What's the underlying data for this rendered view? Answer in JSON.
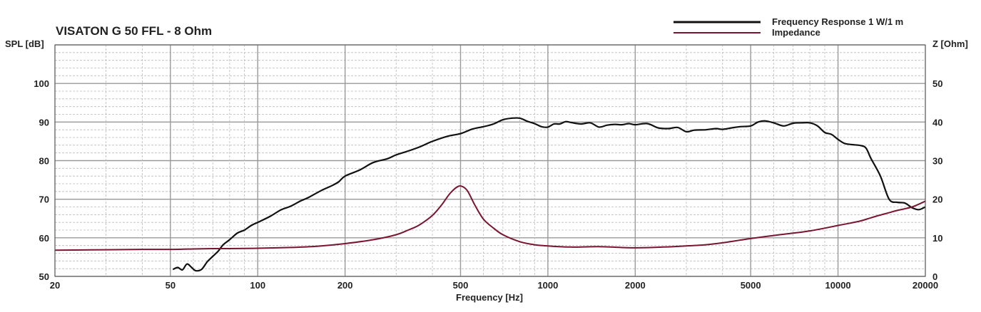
{
  "chart_data": {
    "type": "line",
    "title": "VISATON G 50 FFL - 8 Ohm",
    "xlabel": "Frequency [Hz]",
    "ylabel_left": "SPL [dB]",
    "ylabel_right": "Z [Ohm]",
    "x_scale": "log",
    "xlim": [
      20,
      20000
    ],
    "ylim_left": [
      50,
      110
    ],
    "ylim_right": [
      0,
      60
    ],
    "grid": true,
    "legend_position": "top-right",
    "x_ticks": [
      {
        "value": 20,
        "label": "20"
      },
      {
        "value": 50,
        "label": "50"
      },
      {
        "value": 100,
        "label": "100"
      },
      {
        "value": 200,
        "label": "200"
      },
      {
        "value": 500,
        "label": "500"
      },
      {
        "value": 1000,
        "label": "1000"
      },
      {
        "value": 2000,
        "label": "2000"
      },
      {
        "value": 5000,
        "label": "5000"
      },
      {
        "value": 10000,
        "label": "10000"
      },
      {
        "value": 20000,
        "label": "20000"
      }
    ],
    "y_ticks_left": [
      {
        "value": 50,
        "label": "50"
      },
      {
        "value": 60,
        "label": "60"
      },
      {
        "value": 70,
        "label": "70"
      },
      {
        "value": 80,
        "label": "80"
      },
      {
        "value": 90,
        "label": "90"
      },
      {
        "value": 100,
        "label": "100"
      }
    ],
    "y_ticks_right": [
      {
        "value": 0,
        "label": "0"
      },
      {
        "value": 10,
        "label": "10"
      },
      {
        "value": 20,
        "label": "20"
      },
      {
        "value": 30,
        "label": "30"
      },
      {
        "value": 40,
        "label": "40"
      },
      {
        "value": 50,
        "label": "50"
      }
    ],
    "series": [
      {
        "name": "Frequency Response 1 W/1 m",
        "axis": "left",
        "color": "#111111",
        "points": [
          [
            51,
            51.8
          ],
          [
            53,
            52.3
          ],
          [
            55,
            51.7
          ],
          [
            57,
            53.2
          ],
          [
            59,
            52.4
          ],
          [
            61,
            51.5
          ],
          [
            64,
            51.8
          ],
          [
            67,
            53.8
          ],
          [
            70,
            55.2
          ],
          [
            73,
            56.5
          ],
          [
            76,
            58.2
          ],
          [
            80,
            59.5
          ],
          [
            85,
            61.2
          ],
          [
            90,
            62.0
          ],
          [
            95,
            63.2
          ],
          [
            100,
            64.0
          ],
          [
            110,
            65.5
          ],
          [
            120,
            67.2
          ],
          [
            130,
            68.2
          ],
          [
            140,
            69.5
          ],
          [
            150,
            70.5
          ],
          [
            165,
            72.2
          ],
          [
            180,
            73.5
          ],
          [
            190,
            74.5
          ],
          [
            200,
            76.0
          ],
          [
            225,
            77.6
          ],
          [
            250,
            79.5
          ],
          [
            280,
            80.5
          ],
          [
            300,
            81.5
          ],
          [
            330,
            82.5
          ],
          [
            360,
            83.5
          ],
          [
            400,
            85.0
          ],
          [
            450,
            86.3
          ],
          [
            500,
            87.0
          ],
          [
            550,
            88.2
          ],
          [
            600,
            88.8
          ],
          [
            650,
            89.5
          ],
          [
            700,
            90.6
          ],
          [
            750,
            91.0
          ],
          [
            800,
            91.0
          ],
          [
            850,
            90.2
          ],
          [
            900,
            89.6
          ],
          [
            950,
            88.8
          ],
          [
            1000,
            88.7
          ],
          [
            1050,
            89.5
          ],
          [
            1100,
            89.5
          ],
          [
            1150,
            90.1
          ],
          [
            1200,
            89.9
          ],
          [
            1300,
            89.5
          ],
          [
            1400,
            89.8
          ],
          [
            1500,
            88.7
          ],
          [
            1600,
            89.2
          ],
          [
            1700,
            89.4
          ],
          [
            1800,
            89.3
          ],
          [
            1900,
            89.6
          ],
          [
            2000,
            89.3
          ],
          [
            2200,
            89.6
          ],
          [
            2400,
            88.5
          ],
          [
            2600,
            88.3
          ],
          [
            2800,
            88.6
          ],
          [
            3000,
            87.5
          ],
          [
            3200,
            87.9
          ],
          [
            3500,
            88.0
          ],
          [
            3800,
            88.3
          ],
          [
            4000,
            88.1
          ],
          [
            4300,
            88.5
          ],
          [
            4600,
            88.8
          ],
          [
            5000,
            89.0
          ],
          [
            5300,
            90.0
          ],
          [
            5600,
            90.3
          ],
          [
            6000,
            89.8
          ],
          [
            6500,
            89.0
          ],
          [
            7000,
            89.7
          ],
          [
            7500,
            89.8
          ],
          [
            8000,
            89.8
          ],
          [
            8500,
            89.0
          ],
          [
            9000,
            87.3
          ],
          [
            9500,
            86.8
          ],
          [
            10000,
            85.5
          ],
          [
            10500,
            84.5
          ],
          [
            11000,
            84.2
          ],
          [
            12000,
            83.9
          ],
          [
            12500,
            83.2
          ],
          [
            13000,
            80.5
          ],
          [
            14000,
            76.0
          ],
          [
            15000,
            70.0
          ],
          [
            16000,
            69.2
          ],
          [
            17000,
            69.0
          ],
          [
            18000,
            67.8
          ],
          [
            19000,
            67.3
          ],
          [
            20000,
            68.0
          ]
        ]
      },
      {
        "name": "Impedance",
        "axis": "right",
        "color": "#7a1530",
        "points": [
          [
            20,
            6.8
          ],
          [
            30,
            6.9
          ],
          [
            40,
            7.0
          ],
          [
            50,
            7.0
          ],
          [
            60,
            7.1
          ],
          [
            70,
            7.2
          ],
          [
            80,
            7.2
          ],
          [
            100,
            7.3
          ],
          [
            130,
            7.5
          ],
          [
            160,
            7.8
          ],
          [
            200,
            8.5
          ],
          [
            250,
            9.5
          ],
          [
            300,
            10.8
          ],
          [
            330,
            12.0
          ],
          [
            360,
            13.3
          ],
          [
            400,
            15.8
          ],
          [
            430,
            18.5
          ],
          [
            460,
            21.5
          ],
          [
            490,
            23.3
          ],
          [
            510,
            23.2
          ],
          [
            530,
            22.0
          ],
          [
            560,
            18.5
          ],
          [
            600,
            14.8
          ],
          [
            650,
            12.5
          ],
          [
            700,
            10.8
          ],
          [
            800,
            9.0
          ],
          [
            900,
            8.2
          ],
          [
            1000,
            7.9
          ],
          [
            1200,
            7.6
          ],
          [
            1500,
            7.7
          ],
          [
            2000,
            7.4
          ],
          [
            2500,
            7.6
          ],
          [
            3000,
            7.9
          ],
          [
            3500,
            8.2
          ],
          [
            4000,
            8.7
          ],
          [
            5000,
            9.8
          ],
          [
            6000,
            10.6
          ],
          [
            7000,
            11.2
          ],
          [
            8000,
            11.8
          ],
          [
            9000,
            12.5
          ],
          [
            10000,
            13.2
          ],
          [
            11000,
            13.8
          ],
          [
            12000,
            14.4
          ],
          [
            13000,
            15.2
          ],
          [
            14000,
            15.9
          ],
          [
            15000,
            16.5
          ],
          [
            16000,
            17.1
          ],
          [
            18000,
            18.0
          ],
          [
            20000,
            19.5
          ]
        ]
      }
    ]
  }
}
